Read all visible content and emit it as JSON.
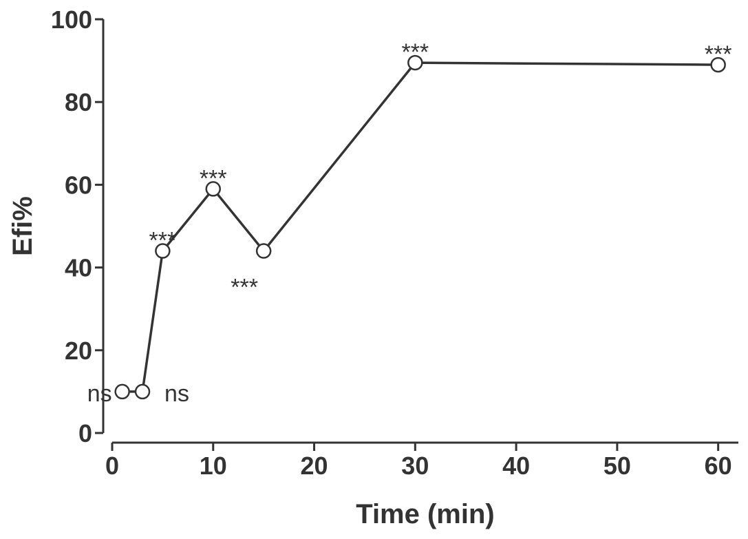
{
  "chart_data": {
    "type": "line",
    "title": "",
    "xlabel": "Time (min)",
    "ylabel": "Efi%",
    "xlim": [
      0,
      62
    ],
    "ylim": [
      0,
      100
    ],
    "xticks": [
      0,
      10,
      20,
      30,
      40,
      50,
      60
    ],
    "yticks": [
      0,
      20,
      40,
      60,
      80,
      100
    ],
    "grid": false,
    "legend": "none",
    "series": [
      {
        "x": [
          1,
          3,
          5,
          10,
          15,
          30,
          60
        ],
        "y": [
          10,
          10,
          44,
          59,
          44,
          89.5,
          89
        ],
        "marker": "open-circle",
        "color": "#333333"
      }
    ],
    "annotations": [
      {
        "text": "ns",
        "x": 1,
        "y": 10,
        "position": "left"
      },
      {
        "text": "ns",
        "x": 3,
        "y": 10,
        "position": "right"
      },
      {
        "text": "***",
        "x": 5,
        "y": 44,
        "position": "above"
      },
      {
        "text": "***",
        "x": 10,
        "y": 59,
        "position": "above"
      },
      {
        "text": "***",
        "x": 15,
        "y": 44,
        "position": "below"
      },
      {
        "text": "***",
        "x": 30,
        "y": 89.5,
        "position": "above"
      },
      {
        "text": "***",
        "x": 60,
        "y": 89,
        "position": "above"
      }
    ]
  }
}
